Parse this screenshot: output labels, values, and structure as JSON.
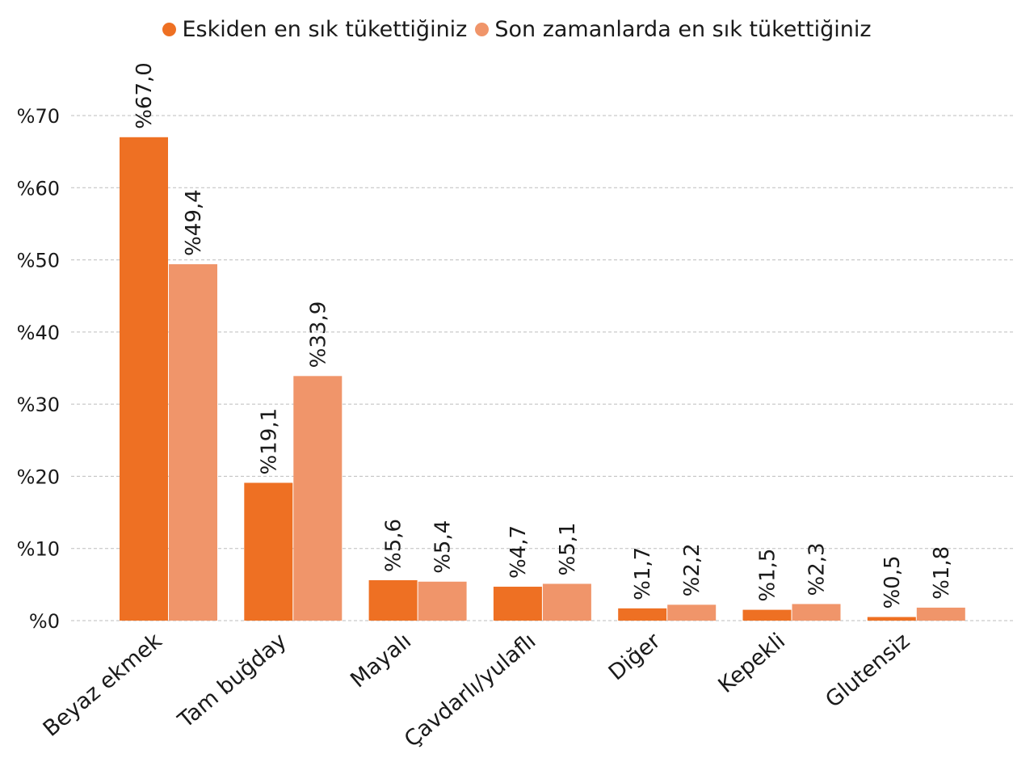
{
  "chart_data": {
    "type": "bar",
    "title": "",
    "xlabel": "",
    "ylabel": "",
    "ylim": [
      0,
      70
    ],
    "yticks": [
      "%0",
      "%10",
      "%20",
      "%30",
      "%40",
      "%50",
      "%60",
      "%70"
    ],
    "grid": true,
    "legend_position": "top-center",
    "categories": [
      "Beyaz ekmek",
      "Tam buğday",
      "Mayalı",
      "Çavdarlı/yulaflı",
      "Diğer",
      "Kepekli",
      "Glutensiz"
    ],
    "series": [
      {
        "name": "Eskiden en sık tükettiğiniz",
        "color": "#ee7023",
        "values": [
          67.0,
          19.1,
          5.6,
          4.7,
          1.7,
          1.5,
          0.5
        ],
        "labels": [
          "%67,0",
          "%19,1",
          "%5,6",
          "%4,7",
          "%1,7",
          "%1,5",
          "%0,5"
        ]
      },
      {
        "name": "Son zamanlarda en sık tükettiğiniz",
        "color": "#f0956a",
        "values": [
          49.4,
          33.9,
          5.4,
          5.1,
          2.2,
          2.3,
          1.8
        ],
        "labels": [
          "%49,4",
          "%33,9",
          "%5,4",
          "%5,1",
          "%2,2",
          "%2,3",
          "%1,8"
        ]
      }
    ]
  }
}
